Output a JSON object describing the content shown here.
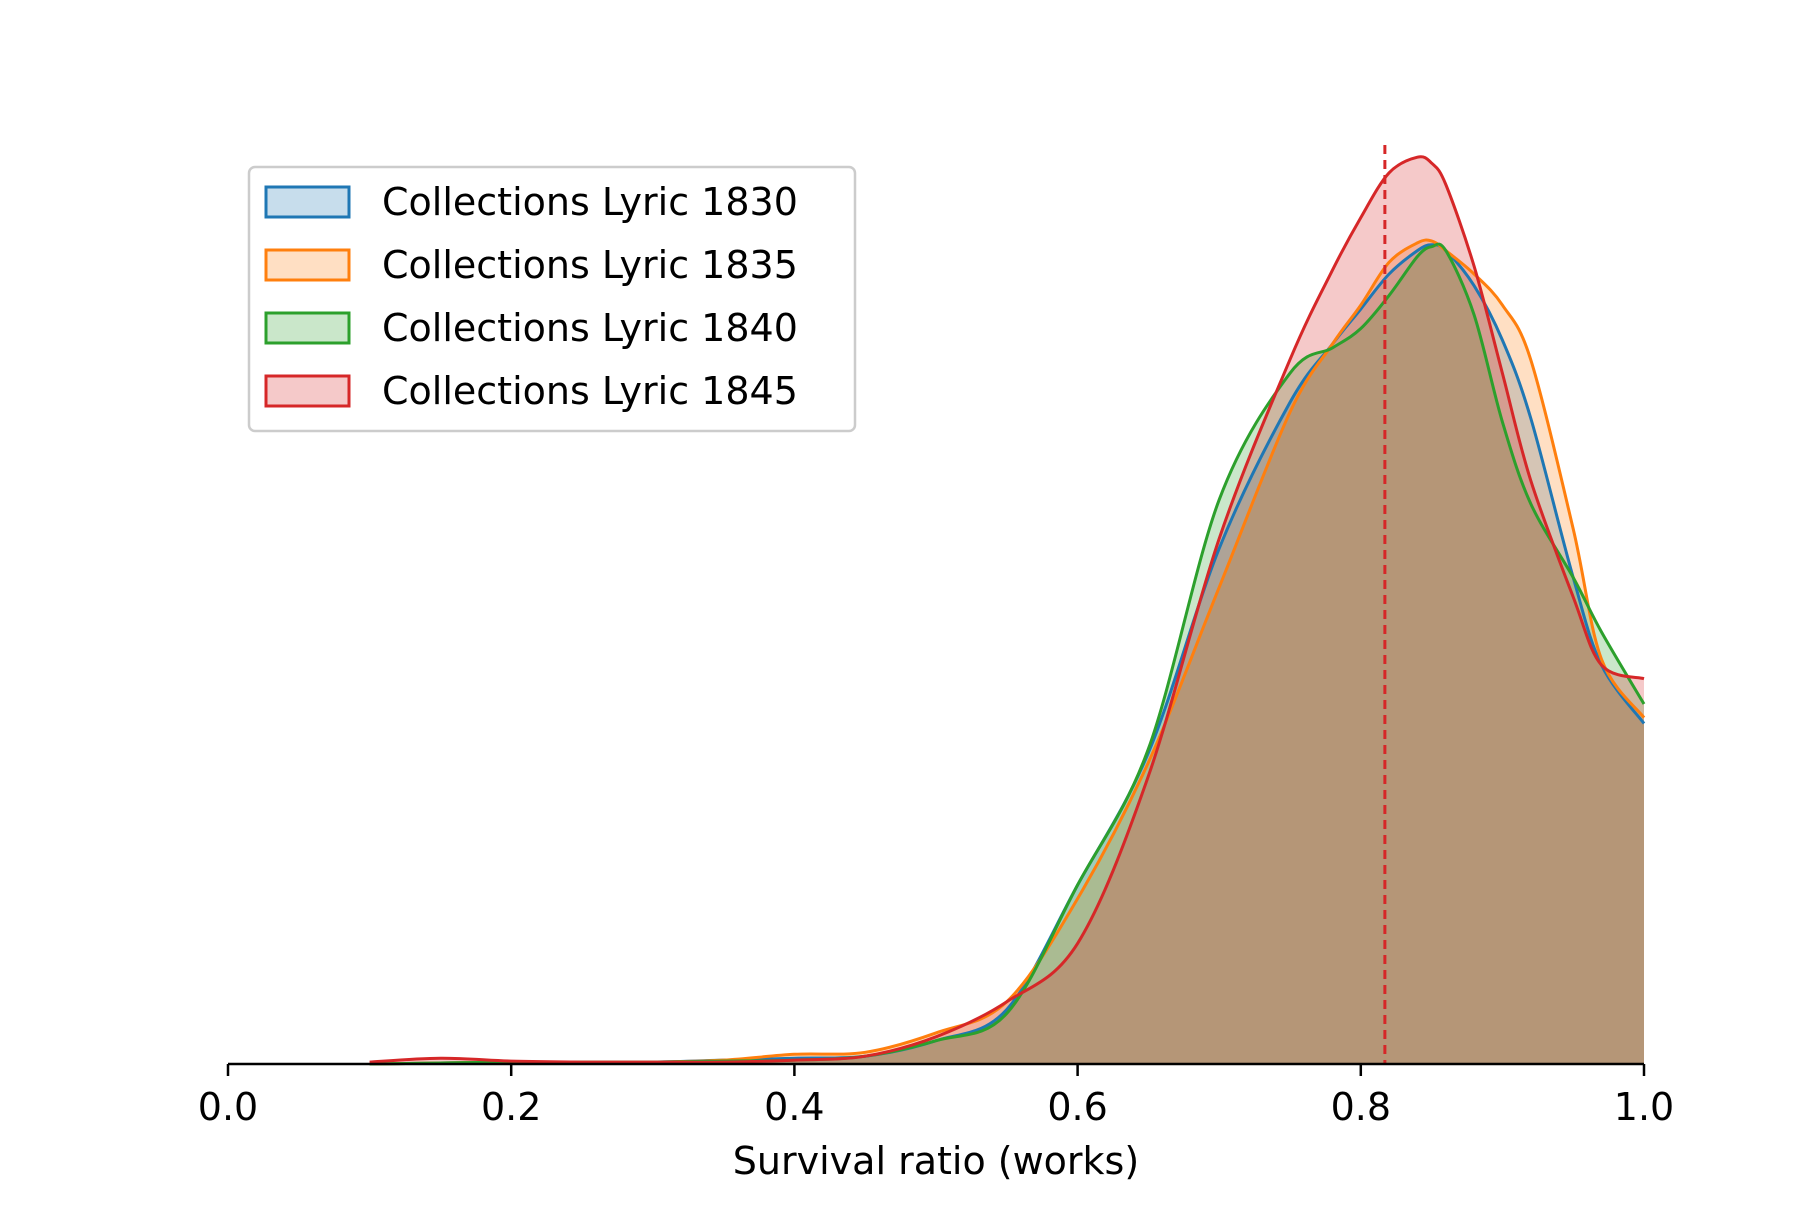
{
  "chart_data": {
    "type": "area",
    "title": "",
    "xlabel": "Survival ratio (works)",
    "ylabel": "",
    "xlim": [
      0.0,
      1.0
    ],
    "ylim": [
      0,
      4.8
    ],
    "x_ticks": [
      0.0,
      0.2,
      0.4,
      0.6,
      0.8,
      1.0
    ],
    "x_tick_labels": [
      "0.0",
      "0.2",
      "0.4",
      "0.6",
      "0.8",
      "1.0"
    ],
    "grid": false,
    "legend_position": "upper-left",
    "reference_line": {
      "x": 0.817,
      "color": "#d62728",
      "style": "dashed"
    },
    "x": [
      0.1,
      0.15,
      0.2,
      0.25,
      0.3,
      0.35,
      0.4,
      0.45,
      0.5,
      0.55,
      0.6,
      0.65,
      0.7,
      0.75,
      0.78,
      0.8,
      0.82,
      0.84,
      0.85,
      0.86,
      0.88,
      0.9,
      0.92,
      0.95,
      0.97,
      1.0
    ],
    "series": [
      {
        "name": "Collections Lyric 1830",
        "color": "#1f77b4",
        "values": [
          0.0,
          0.005,
          0.01,
          0.01,
          0.01,
          0.02,
          0.03,
          0.04,
          0.12,
          0.28,
          0.92,
          1.6,
          2.65,
          3.4,
          3.7,
          3.88,
          4.06,
          4.18,
          4.21,
          4.18,
          4.0,
          3.72,
          3.32,
          2.5,
          2.05,
          1.75
        ]
      },
      {
        "name": "Collections Lyric 1835",
        "color": "#ff7f0e",
        "values": [
          0.0,
          0.005,
          0.01,
          0.01,
          0.01,
          0.02,
          0.05,
          0.06,
          0.16,
          0.32,
          0.85,
          1.55,
          2.45,
          3.35,
          3.7,
          3.9,
          4.12,
          4.22,
          4.23,
          4.18,
          4.06,
          3.9,
          3.62,
          2.75,
          2.08,
          1.78
        ]
      },
      {
        "name": "Collections Lyric 1840",
        "color": "#2ca02c",
        "values": [
          0.0,
          0.005,
          0.01,
          0.01,
          0.01,
          0.015,
          0.02,
          0.04,
          0.12,
          0.26,
          0.92,
          1.62,
          2.9,
          3.55,
          3.68,
          3.78,
          3.95,
          4.15,
          4.2,
          4.18,
          3.85,
          3.3,
          2.88,
          2.5,
          2.22,
          1.85
        ]
      },
      {
        "name": "Collections Lyric 1845",
        "color": "#d62728",
        "values": [
          0.01,
          0.03,
          0.015,
          0.01,
          0.01,
          0.01,
          0.02,
          0.04,
          0.14,
          0.32,
          0.62,
          1.48,
          2.7,
          3.62,
          4.08,
          4.35,
          4.58,
          4.66,
          4.63,
          4.52,
          4.1,
          3.55,
          3.0,
          2.4,
          2.05,
          1.98
        ]
      }
    ]
  }
}
